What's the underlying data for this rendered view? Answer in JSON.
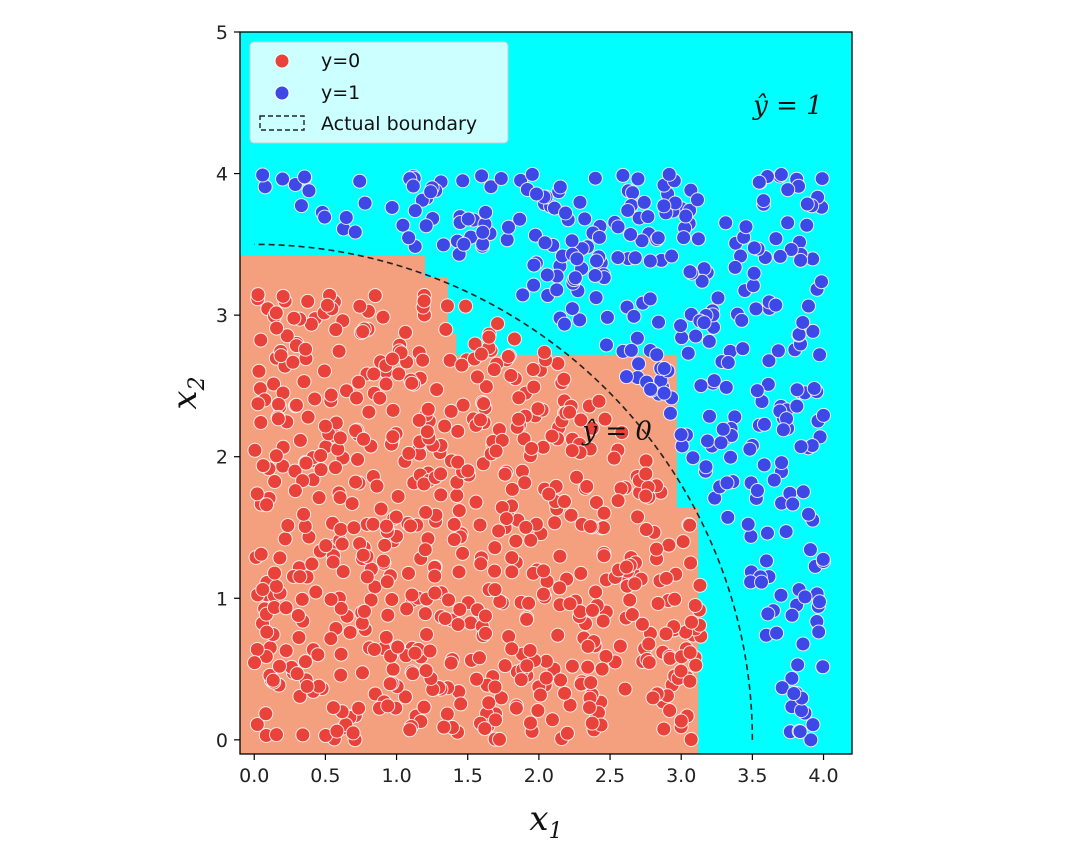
{
  "chart_data": {
    "type": "scatter",
    "title": "",
    "xlabel": "x",
    "xlabel_sub": "1",
    "ylabel": "x",
    "ylabel_sub": "2",
    "xlim": [
      -0.1,
      4.2
    ],
    "ylim": [
      -0.1,
      5.0
    ],
    "xticks": [
      0.0,
      0.5,
      1.0,
      1.5,
      2.0,
      2.5,
      3.0,
      3.5,
      4.0
    ],
    "xtick_labels": [
      "0.0",
      "0.5",
      "1.0",
      "1.5",
      "2.0",
      "2.5",
      "3.0",
      "3.5",
      "4.0"
    ],
    "yticks": [
      0,
      1,
      2,
      3,
      4,
      5
    ],
    "ytick_labels": [
      "0",
      "1",
      "2",
      "3",
      "4",
      "5"
    ],
    "grid": false,
    "legend_position": "top-left",
    "legend": [
      {
        "label": "y=0",
        "marker": "dot",
        "color": "#e8423a"
      },
      {
        "label": "y=1",
        "marker": "dot",
        "color": "#3d48e6"
      },
      {
        "label": "Actual boundary",
        "marker": "dashed-box",
        "color": "#222222"
      }
    ],
    "boundary": {
      "type": "quarter-circle",
      "radius": 3.5,
      "style": "dashed",
      "color": "#222222"
    },
    "background_color": "#00ffff",
    "predicted_region_y0": {
      "color": "#f4a07e",
      "rects": [
        [
          -0.1,
          -0.1,
          1.2,
          3.42
        ],
        [
          -0.1,
          -0.1,
          1.36,
          3.27
        ],
        [
          -0.1,
          -0.1,
          1.42,
          2.87
        ],
        [
          -0.1,
          -0.1,
          2.97,
          2.72
        ],
        [
          -0.1,
          -0.1,
          3.12,
          1.64
        ]
      ]
    },
    "region_labels": [
      {
        "text": "ŷ = 0",
        "x": 2.55,
        "y": 2.12
      },
      {
        "text": "ŷ = 1",
        "x": 3.75,
        "y": 4.42
      }
    ],
    "series": [
      {
        "name": "y=0",
        "color": "#e8423a",
        "count": 700,
        "seed": 7,
        "rule": "x1^2 + x2^2 < 3.5^2",
        "x_range": [
          0.0,
          3.15
        ],
        "y_range": [
          0.0,
          3.15
        ]
      },
      {
        "name": "y=1",
        "color": "#3d48e6",
        "count": 360,
        "seed": 11,
        "rule": "x1^2 + x2^2 > 3.6^2",
        "x_range": [
          0.0,
          4.0
        ],
        "y_range": [
          0.0,
          4.0
        ]
      }
    ]
  }
}
